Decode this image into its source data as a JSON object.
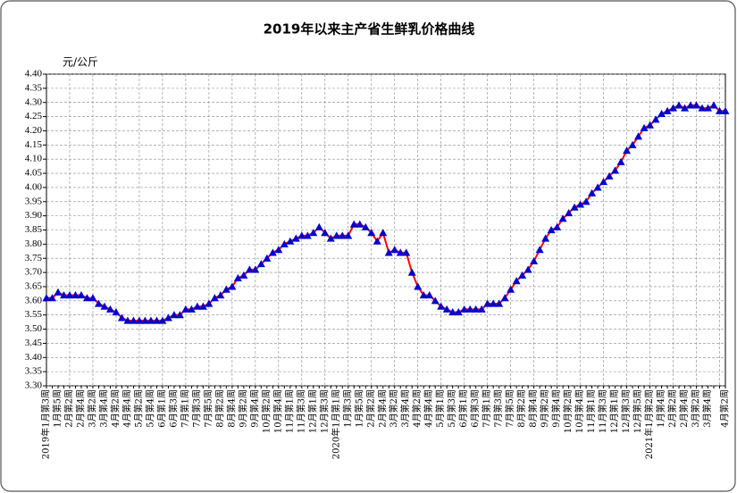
{
  "chart_data": {
    "type": "line",
    "title": "2019年以来主产省生鲜乳价格曲线",
    "y_label": "元/公斤",
    "categories": [
      "2019年1月第3周",
      null,
      "1月第5周",
      null,
      "2月第2周",
      null,
      "2月第4周",
      null,
      "3月第2周",
      null,
      "3月第4周",
      null,
      "4月第2周",
      null,
      "4月第4周",
      null,
      "5月第2周",
      null,
      "5月第4周",
      null,
      "6月第1周",
      null,
      "6月第3周",
      null,
      "7月第1周",
      null,
      "7月第3周",
      null,
      "7月第5周",
      null,
      "8月第2周",
      null,
      "8月第4周",
      null,
      "9月第2周",
      null,
      "9月第4周",
      null,
      "10月第2周",
      null,
      "10月第4周",
      null,
      "11月第1周",
      null,
      "11月第3周",
      null,
      "12月第1周",
      null,
      "12月第3周",
      null,
      "2020年1月第1周",
      null,
      "1月第3周",
      null,
      "1月第5周",
      null,
      "2月第2周",
      null,
      "2月第4周",
      null,
      "3月第2周",
      null,
      "3月第4周",
      null,
      "4月第2周",
      null,
      "4月第4周",
      null,
      "5月第1周",
      null,
      "5月第3周",
      null,
      "6月第1周",
      null,
      "6月第3周",
      null,
      "7月第1周",
      null,
      "7月第3周",
      null,
      "7月第5周",
      null,
      "8月第2周",
      null,
      "8月第4周",
      null,
      "9月第2周",
      null,
      "9月第4周",
      null,
      "10月第2周",
      null,
      "10月第4周",
      null,
      "11月第1周",
      null,
      "11月第3周",
      null,
      "12月第1周",
      null,
      "12月第3周",
      null,
      "12月第5周",
      null,
      "2021年1月第2周",
      null,
      "1月第4周",
      null,
      "2月第2周",
      null,
      "2月第4周",
      null,
      "3月第2周",
      null,
      "3月第4周",
      null,
      null,
      "4月第2周"
    ],
    "values": [
      3.61,
      3.61,
      3.63,
      3.62,
      3.62,
      3.62,
      3.62,
      3.61,
      3.61,
      3.59,
      3.58,
      3.57,
      3.56,
      3.54,
      3.53,
      3.53,
      3.53,
      3.53,
      3.53,
      3.53,
      3.53,
      3.54,
      3.55,
      3.55,
      3.57,
      3.57,
      3.58,
      3.58,
      3.59,
      3.61,
      3.62,
      3.64,
      3.65,
      3.68,
      3.69,
      3.71,
      3.71,
      3.73,
      3.75,
      3.77,
      3.78,
      3.8,
      3.81,
      3.82,
      3.83,
      3.83,
      3.84,
      3.86,
      3.84,
      3.82,
      3.83,
      3.83,
      3.83,
      3.87,
      3.87,
      3.86,
      3.84,
      3.81,
      3.84,
      3.77,
      3.78,
      3.77,
      3.77,
      3.7,
      3.65,
      3.62,
      3.62,
      3.6,
      3.58,
      3.57,
      3.56,
      3.56,
      3.57,
      3.57,
      3.57,
      3.57,
      3.59,
      3.59,
      3.59,
      3.61,
      3.64,
      3.67,
      3.69,
      3.71,
      3.74,
      3.78,
      3.82,
      3.85,
      3.86,
      3.89,
      3.91,
      3.93,
      3.94,
      3.95,
      3.98,
      4.0,
      4.02,
      4.04,
      4.06,
      4.09,
      4.13,
      4.15,
      4.18,
      4.21,
      4.22,
      4.24,
      4.26,
      4.27,
      4.28,
      4.29,
      4.28,
      4.29,
      4.29,
      4.28,
      4.28,
      4.29,
      4.27,
      4.27
    ],
    "color": "#ff0000",
    "marker_color": "#0000cc",
    "ylim": [
      3.3,
      4.4
    ],
    "yticks": [
      {
        "value": 3.3,
        "label": "3.30"
      },
      3.35,
      {
        "value": 3.4,
        "label": "3.40"
      },
      3.45,
      {
        "value": 3.5,
        "label": "3.50"
      },
      3.55,
      {
        "value": 3.6,
        "label": "3.60"
      },
      3.65,
      {
        "value": 3.7,
        "label": "3.70"
      },
      3.75,
      {
        "value": 3.8,
        "label": "3.80"
      },
      3.85,
      {
        "value": 3.9,
        "label": "3.90"
      },
      3.95,
      {
        "value": 4,
        "label": "4.00"
      },
      4.05,
      {
        "value": 4.1,
        "label": "4.10"
      },
      4.15,
      {
        "value": 4.2,
        "label": "4.20"
      },
      4.25,
      {
        "value": 4.3,
        "label": "4.30"
      },
      4.35,
      {
        "value": 4.4,
        "label": "4.40"
      }
    ],
    "grid": true
  }
}
